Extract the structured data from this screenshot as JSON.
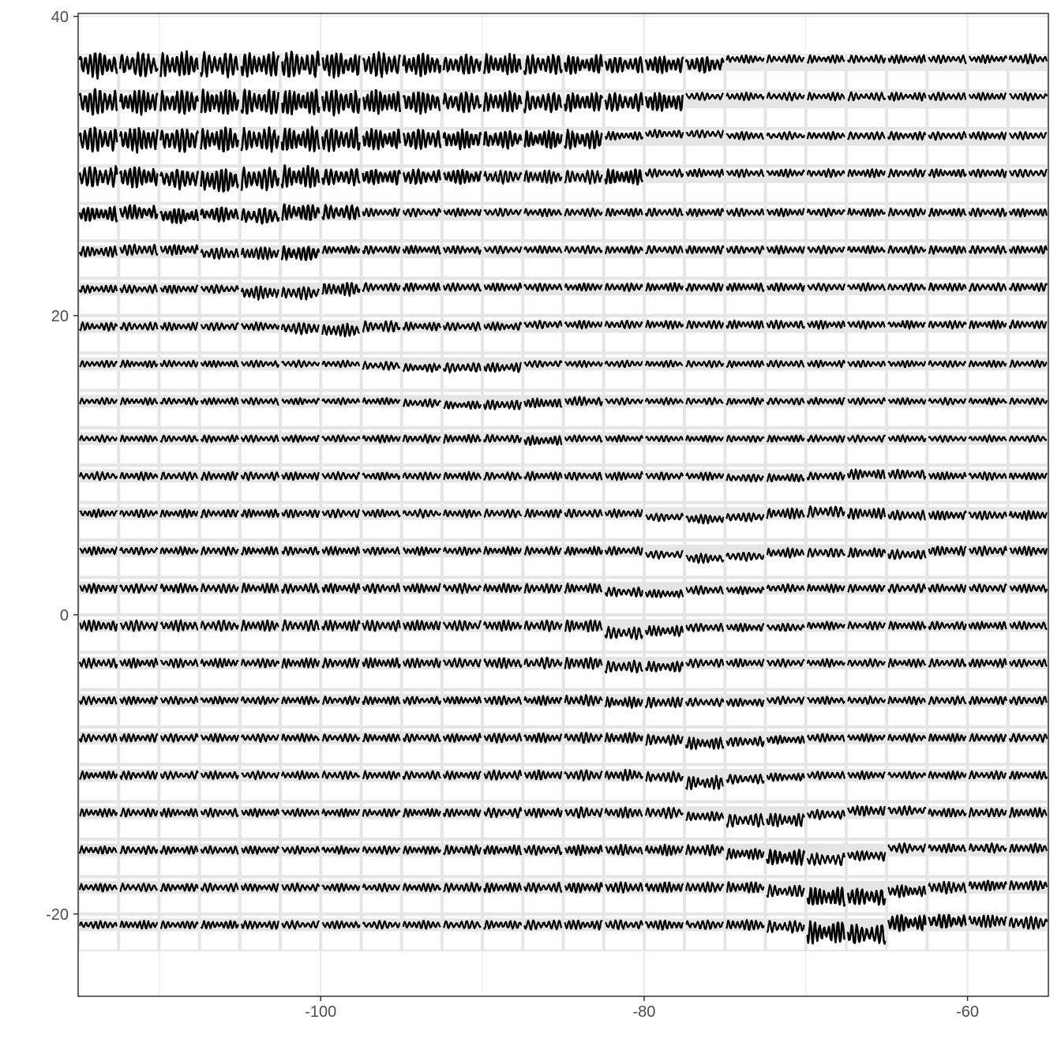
{
  "chart_data": {
    "type": "line",
    "title": "",
    "xlabel": "",
    "ylabel": "",
    "xlim": [
      -115,
      -55
    ],
    "ylim": [
      -25.5,
      40.2
    ],
    "x_ticks": [
      -100,
      -80,
      -60
    ],
    "y_ticks": [
      -20,
      0,
      20,
      40
    ],
    "x_tick_labels": [
      "-100",
      "-80",
      "-60"
    ],
    "y_tick_labels": [
      "-20",
      "0",
      "20",
      "40"
    ],
    "grid": true,
    "legend": "none",
    "description": "Glyph map: a 24 x 24 grid of cells, each holding a small oscillating time-series glyph",
    "grid_cells": {
      "x_centers": [
        -113.75,
        -111.25,
        -108.75,
        -106.25,
        -103.75,
        -101.25,
        -98.75,
        -96.25,
        -93.75,
        -91.25,
        -88.75,
        -86.25,
        -83.75,
        -81.25,
        -78.75,
        -76.25,
        -73.75,
        -71.25,
        -68.75,
        -66.25,
        -63.75,
        -61.25,
        -58.75,
        -56.25
      ],
      "y_centers": [
        36.25,
        33.75,
        31.25,
        28.75,
        26.25,
        23.75,
        21.25,
        18.75,
        16.25,
        13.75,
        11.25,
        8.75,
        6.25,
        3.75,
        1.25,
        -1.25,
        -3.75,
        -6.25,
        -8.75,
        -11.25,
        -13.75,
        -16.25,
        -18.75,
        -21.25
      ],
      "cell_width": 2.5,
      "cell_height": 2.5
    },
    "glyph_amplitude": [
      [
        1.0,
        0.95,
        0.95,
        0.9,
        0.9,
        1.0,
        0.95,
        0.95,
        0.85,
        0.75,
        0.75,
        0.75,
        0.7,
        0.65,
        0.65,
        0.6,
        0.3,
        0.3,
        0.3,
        0.3,
        0.3,
        0.3,
        0.3,
        0.35
      ],
      [
        1.0,
        0.95,
        0.95,
        0.95,
        0.95,
        0.95,
        0.95,
        0.9,
        0.85,
        0.8,
        0.8,
        0.75,
        0.7,
        0.7,
        0.7,
        0.3,
        0.3,
        0.3,
        0.3,
        0.3,
        0.3,
        0.3,
        0.3,
        0.3
      ],
      [
        1.0,
        0.95,
        0.95,
        0.95,
        0.9,
        0.9,
        0.85,
        0.8,
        0.8,
        0.75,
        0.7,
        0.7,
        0.7,
        0.3,
        0.3,
        0.3,
        0.3,
        0.3,
        0.3,
        0.3,
        0.3,
        0.3,
        0.3,
        0.3
      ],
      [
        0.8,
        0.8,
        0.75,
        0.95,
        0.85,
        0.8,
        0.6,
        0.55,
        0.55,
        0.55,
        0.5,
        0.5,
        0.5,
        0.55,
        0.3,
        0.3,
        0.3,
        0.3,
        0.3,
        0.3,
        0.3,
        0.3,
        0.3,
        0.3
      ],
      [
        0.55,
        0.55,
        0.55,
        0.55,
        0.6,
        0.65,
        0.55,
        0.3,
        0.3,
        0.3,
        0.3,
        0.3,
        0.3,
        0.3,
        0.3,
        0.3,
        0.3,
        0.3,
        0.3,
        0.3,
        0.3,
        0.3,
        0.3,
        0.3
      ],
      [
        0.4,
        0.4,
        0.4,
        0.45,
        0.5,
        0.55,
        0.3,
        0.3,
        0.3,
        0.3,
        0.3,
        0.3,
        0.3,
        0.3,
        0.3,
        0.3,
        0.3,
        0.3,
        0.3,
        0.3,
        0.3,
        0.3,
        0.3,
        0.3
      ],
      [
        0.3,
        0.3,
        0.3,
        0.3,
        0.5,
        0.5,
        0.5,
        0.3,
        0.3,
        0.3,
        0.3,
        0.3,
        0.3,
        0.3,
        0.3,
        0.3,
        0.3,
        0.3,
        0.3,
        0.3,
        0.3,
        0.3,
        0.3,
        0.3
      ],
      [
        0.3,
        0.3,
        0.3,
        0.3,
        0.3,
        0.45,
        0.5,
        0.4,
        0.3,
        0.3,
        0.3,
        0.3,
        0.3,
        0.3,
        0.3,
        0.3,
        0.3,
        0.3,
        0.3,
        0.3,
        0.3,
        0.3,
        0.3,
        0.3
      ],
      [
        0.25,
        0.25,
        0.25,
        0.25,
        0.25,
        0.25,
        0.25,
        0.3,
        0.3,
        0.35,
        0.35,
        0.25,
        0.25,
        0.25,
        0.25,
        0.25,
        0.25,
        0.25,
        0.25,
        0.25,
        0.25,
        0.25,
        0.25,
        0.25
      ],
      [
        0.25,
        0.25,
        0.25,
        0.25,
        0.25,
        0.25,
        0.25,
        0.25,
        0.3,
        0.3,
        0.35,
        0.35,
        0.35,
        0.25,
        0.25,
        0.25,
        0.25,
        0.25,
        0.25,
        0.25,
        0.25,
        0.25,
        0.25,
        0.25
      ],
      [
        0.25,
        0.25,
        0.25,
        0.25,
        0.25,
        0.25,
        0.25,
        0.3,
        0.3,
        0.3,
        0.3,
        0.35,
        0.25,
        0.25,
        0.25,
        0.25,
        0.25,
        0.25,
        0.25,
        0.25,
        0.25,
        0.25,
        0.25,
        0.25
      ],
      [
        0.3,
        0.3,
        0.3,
        0.3,
        0.3,
        0.3,
        0.3,
        0.3,
        0.3,
        0.3,
        0.3,
        0.3,
        0.3,
        0.3,
        0.3,
        0.3,
        0.3,
        0.3,
        0.3,
        0.35,
        0.35,
        0.3,
        0.3,
        0.3
      ],
      [
        0.3,
        0.3,
        0.3,
        0.3,
        0.3,
        0.3,
        0.3,
        0.3,
        0.3,
        0.3,
        0.3,
        0.3,
        0.3,
        0.3,
        0.3,
        0.35,
        0.35,
        0.4,
        0.4,
        0.4,
        0.35,
        0.35,
        0.35,
        0.35
      ],
      [
        0.3,
        0.3,
        0.3,
        0.3,
        0.3,
        0.3,
        0.3,
        0.3,
        0.3,
        0.3,
        0.3,
        0.3,
        0.3,
        0.3,
        0.3,
        0.35,
        0.35,
        0.35,
        0.35,
        0.35,
        0.35,
        0.35,
        0.35,
        0.35
      ],
      [
        0.35,
        0.35,
        0.35,
        0.35,
        0.35,
        0.35,
        0.35,
        0.35,
        0.35,
        0.35,
        0.35,
        0.35,
        0.35,
        0.35,
        0.3,
        0.3,
        0.3,
        0.3,
        0.3,
        0.3,
        0.3,
        0.3,
        0.3,
        0.3
      ],
      [
        0.4,
        0.4,
        0.4,
        0.4,
        0.4,
        0.4,
        0.4,
        0.4,
        0.4,
        0.4,
        0.4,
        0.4,
        0.45,
        0.45,
        0.4,
        0.3,
        0.3,
        0.3,
        0.3,
        0.3,
        0.3,
        0.3,
        0.3,
        0.3
      ],
      [
        0.35,
        0.35,
        0.35,
        0.35,
        0.35,
        0.35,
        0.35,
        0.35,
        0.35,
        0.35,
        0.4,
        0.4,
        0.45,
        0.45,
        0.4,
        0.3,
        0.3,
        0.3,
        0.3,
        0.3,
        0.3,
        0.3,
        0.3,
        0.3
      ],
      [
        0.3,
        0.3,
        0.3,
        0.3,
        0.3,
        0.3,
        0.3,
        0.3,
        0.3,
        0.3,
        0.35,
        0.35,
        0.4,
        0.4,
        0.4,
        0.3,
        0.3,
        0.3,
        0.3,
        0.3,
        0.3,
        0.3,
        0.3,
        0.3
      ],
      [
        0.3,
        0.3,
        0.3,
        0.3,
        0.3,
        0.3,
        0.3,
        0.3,
        0.3,
        0.3,
        0.35,
        0.35,
        0.4,
        0.4,
        0.4,
        0.45,
        0.35,
        0.3,
        0.3,
        0.3,
        0.3,
        0.3,
        0.3,
        0.3
      ],
      [
        0.3,
        0.3,
        0.3,
        0.3,
        0.3,
        0.3,
        0.3,
        0.3,
        0.3,
        0.3,
        0.35,
        0.35,
        0.4,
        0.4,
        0.4,
        0.5,
        0.35,
        0.3,
        0.3,
        0.3,
        0.3,
        0.3,
        0.3,
        0.3
      ],
      [
        0.3,
        0.3,
        0.3,
        0.3,
        0.3,
        0.3,
        0.3,
        0.3,
        0.3,
        0.3,
        0.35,
        0.35,
        0.4,
        0.4,
        0.4,
        0.35,
        0.5,
        0.5,
        0.35,
        0.4,
        0.35,
        0.35,
        0.35,
        0.35
      ],
      [
        0.3,
        0.3,
        0.3,
        0.3,
        0.3,
        0.3,
        0.3,
        0.3,
        0.3,
        0.35,
        0.35,
        0.35,
        0.4,
        0.4,
        0.4,
        0.4,
        0.4,
        0.55,
        0.45,
        0.4,
        0.35,
        0.35,
        0.35,
        0.35
      ],
      [
        0.3,
        0.3,
        0.3,
        0.3,
        0.3,
        0.3,
        0.3,
        0.3,
        0.3,
        0.35,
        0.35,
        0.35,
        0.4,
        0.4,
        0.4,
        0.4,
        0.4,
        0.45,
        0.7,
        0.65,
        0.45,
        0.45,
        0.4,
        0.4
      ],
      [
        0.3,
        0.3,
        0.3,
        0.3,
        0.3,
        0.3,
        0.3,
        0.3,
        0.3,
        0.3,
        0.3,
        0.35,
        0.35,
        0.35,
        0.35,
        0.35,
        0.4,
        0.45,
        0.8,
        0.75,
        0.6,
        0.55,
        0.5,
        0.5
      ]
    ],
    "glyph_offset": [
      [
        0,
        0,
        0,
        0,
        0,
        0,
        0,
        0,
        0,
        0,
        0,
        0,
        0,
        0,
        0,
        0,
        0.15,
        0.15,
        0.15,
        0.15,
        0.15,
        0.15,
        0.15,
        0.15
      ],
      [
        0,
        0,
        0,
        0,
        0,
        0,
        0,
        0,
        0,
        0,
        0,
        0,
        0,
        0,
        0,
        0.15,
        0.15,
        0.15,
        0.15,
        0.15,
        0.15,
        0.15,
        0.15,
        0.15
      ],
      [
        0,
        0,
        0,
        0,
        0,
        0,
        0,
        0,
        0,
        0,
        0,
        0,
        0,
        0.1,
        0.15,
        0.15,
        0.1,
        0.1,
        0.1,
        0.1,
        0.1,
        0.1,
        0.1,
        0.1
      ],
      [
        0,
        0,
        -0.05,
        -0.1,
        -0.05,
        0,
        0,
        0,
        0,
        0,
        0,
        0,
        0,
        0,
        0.1,
        0.1,
        0.1,
        0.1,
        0.1,
        0.1,
        0.1,
        0.1,
        0.1,
        0.1
      ],
      [
        0,
        0.05,
        -0.05,
        0,
        -0.05,
        0.05,
        0.05,
        0.05,
        0.05,
        0.05,
        0.05,
        0.05,
        0.05,
        0.05,
        0.05,
        0.05,
        0.05,
        0.05,
        0.05,
        0.05,
        0.05,
        0.05,
        0.05,
        0.05
      ],
      [
        0,
        0.05,
        0.05,
        -0.05,
        -0.05,
        -0.05,
        0.05,
        0.05,
        0.05,
        0.05,
        0.05,
        0.05,
        0.05,
        0.05,
        0.05,
        0.05,
        0.05,
        0.05,
        0.05,
        0.05,
        0.05,
        0.05,
        0.05,
        0.05
      ],
      [
        0,
        0,
        0,
        0,
        -0.1,
        -0.1,
        0,
        0.05,
        0.05,
        0.05,
        0.05,
        0.05,
        0.05,
        0.05,
        0.05,
        0.05,
        0.05,
        0.05,
        0.05,
        0.05,
        0.05,
        0.05,
        0.05,
        0.05
      ],
      [
        0,
        0,
        0,
        0,
        0,
        -0.05,
        -0.1,
        0,
        0,
        0,
        0,
        0.05,
        0.05,
        0.05,
        0.05,
        0.05,
        0.05,
        0.05,
        0.05,
        0.05,
        0.05,
        0.05,
        0.05,
        0.05
      ],
      [
        0,
        0,
        0,
        0,
        0,
        0,
        0,
        -0.05,
        -0.1,
        -0.1,
        -0.1,
        0,
        0,
        0,
        0,
        0,
        0,
        0,
        0,
        0,
        0,
        0,
        0,
        0
      ],
      [
        0,
        0,
        0,
        0,
        0,
        0,
        0,
        0,
        -0.05,
        -0.1,
        -0.1,
        -0.05,
        0,
        0,
        0,
        0,
        0,
        0,
        0,
        0,
        0,
        0,
        0,
        0
      ],
      [
        0,
        0,
        0,
        0,
        0,
        0,
        0,
        0,
        0,
        0,
        0,
        -0.05,
        0,
        0,
        0,
        0,
        0,
        0,
        0,
        0,
        0,
        0,
        0,
        0
      ],
      [
        0,
        0,
        0,
        0,
        0,
        0,
        0,
        0,
        0,
        0,
        0,
        0,
        0,
        0,
        0,
        0,
        -0.05,
        -0.05,
        0,
        0.05,
        0.05,
        0,
        0,
        0
      ],
      [
        0,
        0,
        0,
        0,
        0,
        0,
        0,
        0,
        0,
        0,
        0,
        0,
        0,
        0,
        -0.1,
        -0.15,
        -0.1,
        0,
        0.05,
        0,
        -0.05,
        -0.05,
        -0.05,
        -0.05
      ],
      [
        0,
        0,
        0,
        0,
        0,
        0,
        0,
        0,
        0,
        0,
        0,
        0,
        0,
        0,
        -0.1,
        -0.2,
        -0.15,
        -0.05,
        -0.05,
        -0.05,
        -0.1,
        0,
        0,
        0
      ],
      [
        0,
        0,
        0,
        0,
        0,
        0,
        0,
        0,
        0,
        0,
        0,
        0,
        0,
        -0.1,
        -0.15,
        -0.05,
        -0.05,
        0,
        0,
        0,
        0,
        0,
        0,
        0
      ],
      [
        0,
        0,
        0,
        0,
        0,
        0,
        0,
        0,
        0,
        0,
        0,
        0,
        0,
        -0.2,
        -0.15,
        -0.05,
        -0.05,
        -0.05,
        0,
        0,
        0,
        0,
        0,
        0
      ],
      [
        0,
        0,
        0,
        0,
        0,
        0,
        0,
        0,
        0,
        0,
        0,
        0,
        0,
        -0.1,
        -0.1,
        0,
        0,
        0,
        0,
        0,
        0,
        0,
        0,
        0
      ],
      [
        0,
        0,
        0,
        0,
        0,
        0,
        0,
        0,
        0,
        0,
        0,
        0,
        0,
        -0.05,
        -0.05,
        -0.05,
        -0.05,
        0,
        0,
        0,
        0,
        0,
        0,
        0
      ],
      [
        0,
        0,
        0,
        0,
        0,
        0,
        0,
        0,
        0,
        0,
        0,
        0,
        0,
        0,
        -0.05,
        -0.15,
        -0.1,
        -0.05,
        0,
        0,
        0,
        0,
        0,
        0
      ],
      [
        0,
        0,
        0,
        0,
        0,
        0,
        0,
        0,
        0,
        0,
        0,
        0,
        0,
        0,
        -0.05,
        -0.2,
        -0.1,
        -0.05,
        0,
        0,
        0,
        0,
        0,
        0
      ],
      [
        0,
        0,
        0,
        0,
        0,
        0,
        0,
        0,
        0,
        0,
        0,
        0,
        0,
        0,
        0,
        -0.1,
        -0.2,
        -0.2,
        -0.05,
        0.05,
        0.05,
        0,
        0,
        0
      ],
      [
        0,
        0,
        0,
        0,
        0,
        0,
        0,
        0,
        0,
        0,
        0,
        0,
        0,
        0,
        0,
        0,
        -0.1,
        -0.2,
        -0.25,
        -0.15,
        0.05,
        0.05,
        0.05,
        0.05
      ],
      [
        0,
        0,
        0,
        0,
        0,
        0,
        0,
        0,
        0,
        0,
        0,
        0,
        0,
        0,
        0,
        0,
        0,
        -0.1,
        -0.25,
        -0.25,
        -0.1,
        0,
        0.05,
        0.05
      ],
      [
        0,
        0,
        0,
        0,
        0,
        0,
        0,
        0,
        0,
        0,
        0,
        0,
        0,
        0,
        0,
        0,
        0,
        -0.05,
        -0.2,
        -0.25,
        0.05,
        0.1,
        0.1,
        0.05
      ]
    ],
    "colors": {
      "line": "#000000",
      "cell_border": "#e5e5e5",
      "glyph_band": "#e5e5e5",
      "grid_major": "#ebebeb",
      "panel_border": "#333333",
      "tick_label": "#4d4d4d"
    }
  }
}
